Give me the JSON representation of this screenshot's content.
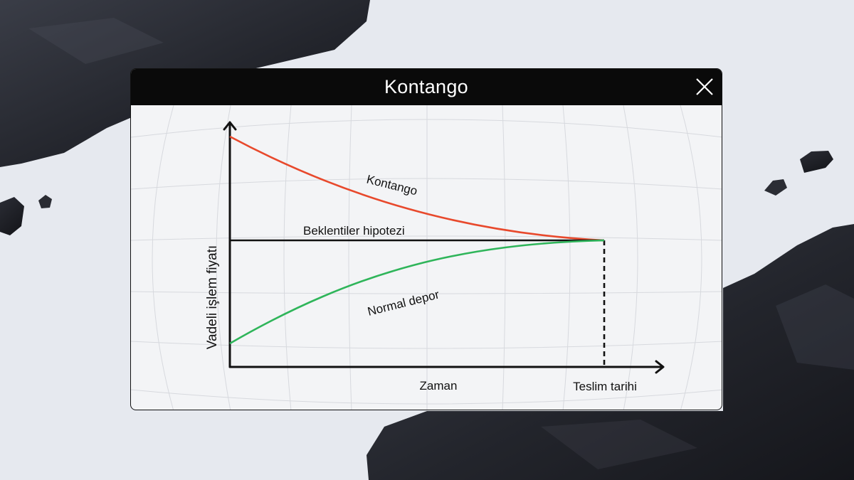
{
  "window": {
    "title": "Kontango"
  },
  "icons": {
    "close": "close-icon"
  },
  "colors": {
    "contango": "#e8492c",
    "backwardation": "#2fb55a",
    "expectation": "#111111",
    "titlebar": "#0a0a0a",
    "background": "#e6e9ef"
  },
  "diagram": {
    "y_axis_label": "Vadeli işlem fiyatı",
    "x_axis_label": "Zaman",
    "delivery_label": "Teslim tarihi",
    "curves": {
      "contango": "Kontango",
      "expectation": "Beklentiler hipotezi",
      "backwardation": "Normal depor"
    }
  }
}
